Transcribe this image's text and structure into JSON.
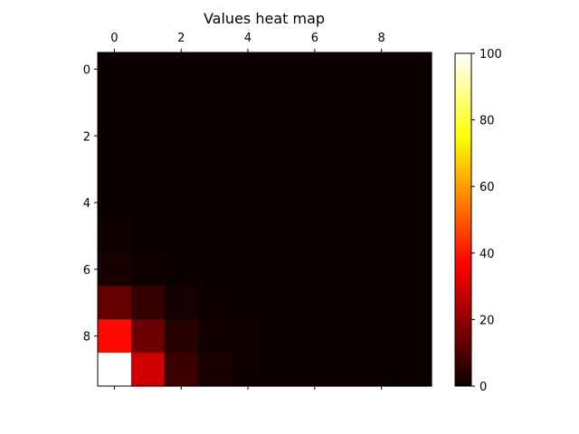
{
  "chart_data": {
    "type": "heatmap",
    "title": "Values heat map",
    "xlabel": "",
    "ylabel": "",
    "x_ticks": [
      0,
      2,
      4,
      6,
      8
    ],
    "y_ticks": [
      0,
      2,
      4,
      6,
      8
    ],
    "x_tick_position": "top",
    "rows": 10,
    "cols": 10,
    "values": [
      [
        0,
        0,
        0,
        0,
        0,
        0,
        0,
        0,
        0,
        0
      ],
      [
        0,
        0,
        0,
        0,
        0,
        0,
        0,
        0,
        0,
        0
      ],
      [
        0,
        0,
        0,
        0,
        0,
        0,
        0,
        0,
        0,
        0
      ],
      [
        0,
        0,
        0,
        0,
        0,
        0,
        0,
        0,
        0,
        0
      ],
      [
        0,
        0,
        0,
        0,
        0,
        0,
        0,
        0,
        0,
        0
      ],
      [
        0.2,
        0,
        0,
        0,
        0,
        0,
        0,
        0,
        0,
        0
      ],
      [
        2,
        0.6,
        0.1,
        0,
        0,
        0,
        0,
        0,
        0,
        0
      ],
      [
        13,
        6,
        1.5,
        0.3,
        0.1,
        0,
        0,
        0,
        0,
        0
      ],
      [
        38,
        14,
        4,
        1,
        0.3,
        0.1,
        0,
        0,
        0,
        0
      ],
      [
        100,
        28,
        7,
        2,
        0.5,
        0.1,
        0,
        0,
        0,
        0
      ]
    ],
    "colormap": "hot",
    "colorbar": {
      "range": [
        0,
        100
      ],
      "ticks": [
        0,
        20,
        40,
        60,
        80,
        100
      ]
    },
    "grid": false
  }
}
